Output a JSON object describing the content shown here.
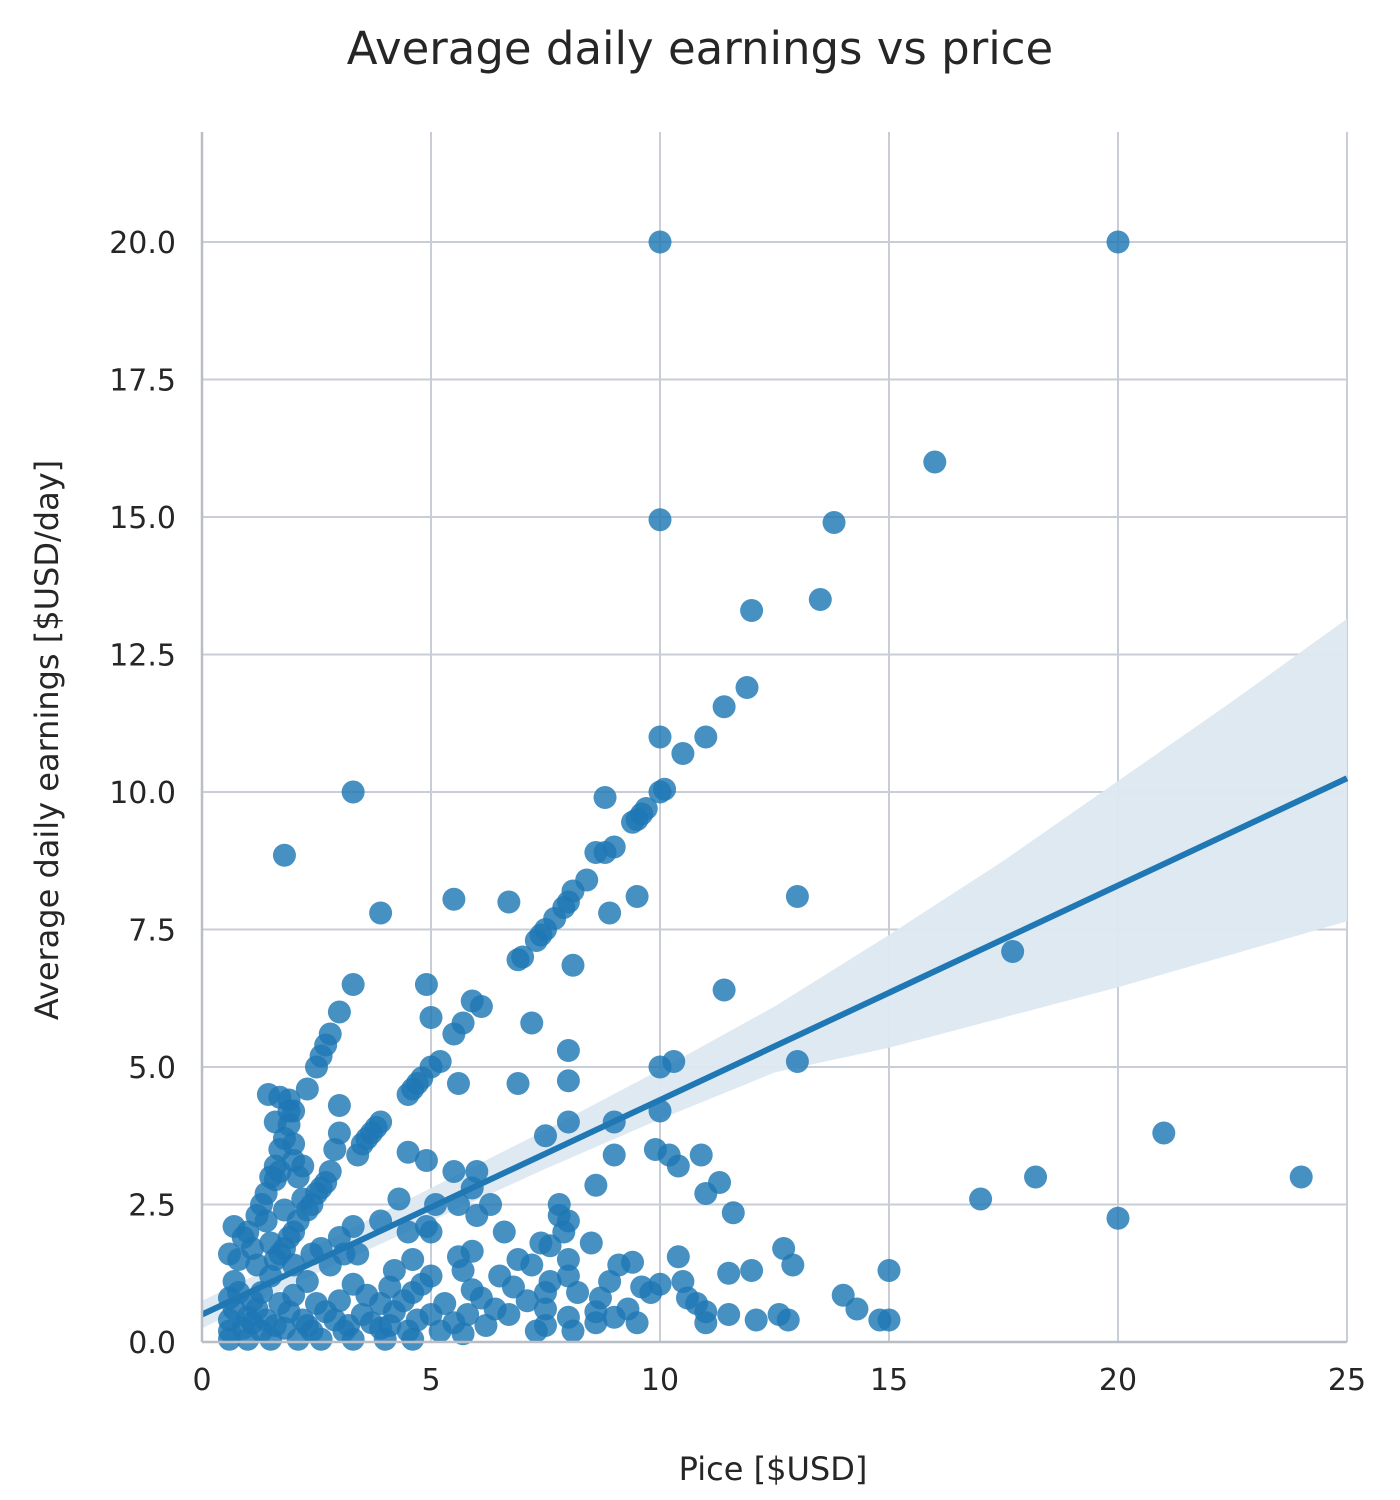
{
  "chart_data": {
    "type": "scatter",
    "title": "Average daily earnings vs price",
    "xlabel": "Pice [$USD]",
    "ylabel": "Average daily earnings [$USD/day]",
    "xlim": [
      0,
      25
    ],
    "ylim": [
      0,
      22
    ],
    "xticks": [
      "0",
      "5",
      "10",
      "15",
      "20",
      "25"
    ],
    "xtick_values": [
      0,
      5,
      10,
      15,
      20,
      25
    ],
    "yticks": [
      "0.0",
      "2.5",
      "5.0",
      "7.5",
      "10.0",
      "12.5",
      "15.0",
      "17.5",
      "20.0"
    ],
    "ytick_values": [
      0,
      2.5,
      5,
      7.5,
      10,
      12.5,
      15,
      17.5,
      20
    ],
    "grid": true,
    "color": "#1f77b4",
    "band_color": "#dde8f1",
    "grid_color": "#c9ced6",
    "regression": {
      "x": [
        0,
        25
      ],
      "y": [
        0.5,
        10.25
      ]
    },
    "ci_band": {
      "x": [
        0,
        2.5,
        5,
        7.5,
        10,
        12.5,
        15,
        17.5,
        20,
        22.5,
        25
      ],
      "upper": [
        0.75,
        1.75,
        2.8,
        3.85,
        4.95,
        6.1,
        7.4,
        8.75,
        10.2,
        11.65,
        13.15
      ],
      "lower": [
        0.25,
        1.25,
        2.2,
        3.15,
        4.05,
        4.9,
        5.35,
        5.9,
        6.45,
        7.05,
        7.65
      ]
    },
    "points": [
      [
        10,
        20
      ],
      [
        20,
        20
      ],
      [
        16,
        16
      ],
      [
        10,
        14.95
      ],
      [
        13.8,
        14.9
      ],
      [
        13.5,
        13.5
      ],
      [
        12,
        13.3
      ],
      [
        11.9,
        11.9
      ],
      [
        11.4,
        11.55
      ],
      [
        10,
        11
      ],
      [
        11,
        11
      ],
      [
        10.5,
        10.7
      ],
      [
        3.3,
        10
      ],
      [
        10.1,
        10.05
      ],
      [
        10,
        10
      ],
      [
        8.8,
        9.9
      ],
      [
        9.7,
        9.7
      ],
      [
        9.6,
        9.6
      ],
      [
        9.5,
        9.5
      ],
      [
        9.4,
        9.45
      ],
      [
        9,
        9
      ],
      [
        8.8,
        8.9
      ],
      [
        8.6,
        8.9
      ],
      [
        1.8,
        8.85
      ],
      [
        8.4,
        8.4
      ],
      [
        8.1,
        8.2
      ],
      [
        13,
        8.1
      ],
      [
        5.5,
        8.05
      ],
      [
        9.5,
        8.1
      ],
      [
        6.7,
        8
      ],
      [
        8,
        8
      ],
      [
        7.9,
        7.9
      ],
      [
        8.9,
        7.8
      ],
      [
        3.9,
        7.8
      ],
      [
        7.7,
        7.7
      ],
      [
        7.5,
        7.5
      ],
      [
        7.4,
        7.4
      ],
      [
        7.3,
        7.3
      ],
      [
        17.7,
        7.1
      ],
      [
        7,
        7
      ],
      [
        6.9,
        6.95
      ],
      [
        8.1,
        6.85
      ],
      [
        3.3,
        6.5
      ],
      [
        4.9,
        6.5
      ],
      [
        11.4,
        6.4
      ],
      [
        5.9,
        6.2
      ],
      [
        5.5,
        5.6
      ],
      [
        6.1,
        6.1
      ],
      [
        5.7,
        5.8
      ],
      [
        5,
        5.9
      ],
      [
        3,
        6
      ],
      [
        7.2,
        5.8
      ],
      [
        2.8,
        5.6
      ],
      [
        2.7,
        5.4
      ],
      [
        2.6,
        5.2
      ],
      [
        2.5,
        5
      ],
      [
        8,
        5.3
      ],
      [
        10.3,
        5.1
      ],
      [
        13,
        5.1
      ],
      [
        10,
        5
      ],
      [
        5.2,
        5.1
      ],
      [
        5,
        5
      ],
      [
        4.8,
        4.8
      ],
      [
        4.7,
        4.7
      ],
      [
        4.6,
        4.6
      ],
      [
        4.5,
        4.5
      ],
      [
        6.9,
        4.7
      ],
      [
        5.6,
        4.7
      ],
      [
        8,
        4.75
      ],
      [
        2.3,
        4.6
      ],
      [
        1.45,
        4.5
      ],
      [
        1.7,
        4.45
      ],
      [
        1.9,
        4.4
      ],
      [
        2,
        4.2
      ],
      [
        3,
        4.3
      ],
      [
        10,
        4.2
      ],
      [
        3.9,
        4
      ],
      [
        3.8,
        3.9
      ],
      [
        3.7,
        3.8
      ],
      [
        3.6,
        3.7
      ],
      [
        8,
        4
      ],
      [
        9,
        4
      ],
      [
        1.9,
        3.95
      ],
      [
        1.8,
        3.7
      ],
      [
        3,
        3.8
      ],
      [
        7.5,
        3.75
      ],
      [
        3.5,
        3.6
      ],
      [
        3.4,
        3.4
      ],
      [
        2.9,
        3.5
      ],
      [
        9.9,
        3.5
      ],
      [
        1.7,
        3.5
      ],
      [
        1.6,
        3.2
      ],
      [
        4.5,
        3.45
      ],
      [
        10.2,
        3.4
      ],
      [
        10.9,
        3.4
      ],
      [
        9,
        3.4
      ],
      [
        4.9,
        3.3
      ],
      [
        5.5,
        3.1
      ],
      [
        10.4,
        3.2
      ],
      [
        6,
        3.1
      ],
      [
        2.2,
        3.2
      ],
      [
        1.5,
        3
      ],
      [
        1.6,
        2.95
      ],
      [
        2.7,
        2.9
      ],
      [
        2.6,
        2.8
      ],
      [
        5.9,
        2.8
      ],
      [
        11.3,
        2.9
      ],
      [
        8.6,
        2.85
      ],
      [
        11,
        2.7
      ],
      [
        2.5,
        2.7
      ],
      [
        2.4,
        2.5
      ],
      [
        2.3,
        2.4
      ],
      [
        1.4,
        2.7
      ],
      [
        1.3,
        2.5
      ],
      [
        4.3,
        2.6
      ],
      [
        5.6,
        2.5
      ],
      [
        6.3,
        2.5
      ],
      [
        7.8,
        2.5
      ],
      [
        5.1,
        2.5
      ],
      [
        6,
        2.3
      ],
      [
        7.8,
        2.3
      ],
      [
        11.6,
        2.35
      ],
      [
        1.2,
        2.3
      ],
      [
        2.1,
        2.2
      ],
      [
        2,
        2
      ],
      [
        3.9,
        2.2
      ],
      [
        4.9,
        2.1
      ],
      [
        5,
        2
      ],
      [
        0.7,
        2.1
      ],
      [
        1,
        2
      ],
      [
        3.3,
        2.1
      ],
      [
        8,
        2.2
      ],
      [
        6.6,
        2
      ],
      [
        7.9,
        2
      ],
      [
        4.5,
        2
      ],
      [
        1.9,
        1.9
      ],
      [
        0.9,
        1.9
      ],
      [
        3,
        1.9
      ],
      [
        7.4,
        1.8
      ],
      [
        8.5,
        1.8
      ],
      [
        12.7,
        1.7
      ],
      [
        7.6,
        1.75
      ],
      [
        1.8,
        1.7
      ],
      [
        2.6,
        1.7
      ],
      [
        0.6,
        1.6
      ],
      [
        1.7,
        1.6
      ],
      [
        3.1,
        1.6
      ],
      [
        3.4,
        1.6
      ],
      [
        4.6,
        1.5
      ],
      [
        5.6,
        1.55
      ],
      [
        5.9,
        1.65
      ],
      [
        6.9,
        1.5
      ],
      [
        7.2,
        1.4
      ],
      [
        8,
        1.5
      ],
      [
        9.4,
        1.45
      ],
      [
        10.4,
        1.55
      ],
      [
        9.1,
        1.4
      ],
      [
        12.9,
        1.4
      ],
      [
        15,
        1.3
      ],
      [
        11.5,
        1.25
      ],
      [
        12,
        1.3
      ],
      [
        1.6,
        1.5
      ],
      [
        2.8,
        1.4
      ],
      [
        4.2,
        1.3
      ],
      [
        5,
        1.2
      ],
      [
        5.7,
        1.3
      ],
      [
        6.5,
        1.2
      ],
      [
        7.6,
        1.1
      ],
      [
        8,
        1.2
      ],
      [
        8.9,
        1.1
      ],
      [
        9.6,
        1
      ],
      [
        10,
        1.05
      ],
      [
        10.5,
        1.1
      ],
      [
        0.7,
        1.1
      ],
      [
        1.5,
        1.2
      ],
      [
        2.3,
        1.1
      ],
      [
        3.3,
        1.05
      ],
      [
        4.1,
        1
      ],
      [
        4.8,
        1.05
      ],
      [
        5.9,
        0.95
      ],
      [
        6.8,
        1
      ],
      [
        7.5,
        0.9
      ],
      [
        8.2,
        0.9
      ],
      [
        9.8,
        0.9
      ],
      [
        10.6,
        0.8
      ],
      [
        14,
        0.85
      ],
      [
        0.8,
        0.9
      ],
      [
        1.3,
        0.9
      ],
      [
        2,
        0.85
      ],
      [
        3.6,
        0.85
      ],
      [
        4.6,
        0.9
      ],
      [
        6.1,
        0.8
      ],
      [
        7.1,
        0.75
      ],
      [
        8.7,
        0.8
      ],
      [
        10.8,
        0.7
      ],
      [
        14.3,
        0.6
      ],
      [
        0.6,
        0.8
      ],
      [
        1.1,
        0.75
      ],
      [
        1.7,
        0.7
      ],
      [
        2.5,
        0.7
      ],
      [
        3,
        0.75
      ],
      [
        3.9,
        0.7
      ],
      [
        4.4,
        0.75
      ],
      [
        5.3,
        0.7
      ],
      [
        6.4,
        0.6
      ],
      [
        7.5,
        0.6
      ],
      [
        8.6,
        0.55
      ],
      [
        9.3,
        0.6
      ],
      [
        11,
        0.55
      ],
      [
        11.5,
        0.5
      ],
      [
        12.6,
        0.5
      ],
      [
        0.7,
        0.6
      ],
      [
        1.2,
        0.6
      ],
      [
        1.9,
        0.55
      ],
      [
        2.7,
        0.55
      ],
      [
        3.5,
        0.5
      ],
      [
        4.2,
        0.55
      ],
      [
        5,
        0.5
      ],
      [
        5.8,
        0.5
      ],
      [
        6.7,
        0.5
      ],
      [
        8,
        0.45
      ],
      [
        9,
        0.45
      ],
      [
        12.1,
        0.4
      ],
      [
        12.8,
        0.4
      ],
      [
        14.8,
        0.4
      ],
      [
        15,
        0.4
      ],
      [
        0.6,
        0.4
      ],
      [
        1,
        0.45
      ],
      [
        1.4,
        0.4
      ],
      [
        2.2,
        0.4
      ],
      [
        2.9,
        0.4
      ],
      [
        3.7,
        0.35
      ],
      [
        4.7,
        0.4
      ],
      [
        5.5,
        0.35
      ],
      [
        6.2,
        0.3
      ],
      [
        7.5,
        0.3
      ],
      [
        8.6,
        0.35
      ],
      [
        9.5,
        0.35
      ],
      [
        11,
        0.35
      ],
      [
        0.6,
        0.2
      ],
      [
        0.9,
        0.25
      ],
      [
        1.3,
        0.2
      ],
      [
        1.8,
        0.25
      ],
      [
        2.4,
        0.2
      ],
      [
        3.1,
        0.2
      ],
      [
        3.9,
        0.25
      ],
      [
        4.5,
        0.2
      ],
      [
        5.2,
        0.2
      ],
      [
        5.7,
        0.15
      ],
      [
        7.3,
        0.2
      ],
      [
        8.1,
        0.2
      ],
      [
        0.6,
        0.05
      ],
      [
        1,
        0.05
      ],
      [
        1.5,
        0.05
      ],
      [
        2.1,
        0.05
      ],
      [
        2.6,
        0.05
      ],
      [
        3.3,
        0.05
      ],
      [
        4,
        0.05
      ],
      [
        4.6,
        0.05
      ],
      [
        1.1,
        0.35
      ],
      [
        1.6,
        0.3
      ],
      [
        2.3,
        0.3
      ],
      [
        3.2,
        0.3
      ],
      [
        4.1,
        0.3
      ],
      [
        1.2,
        1.4
      ],
      [
        1.5,
        1.8
      ],
      [
        2,
        1.4
      ],
      [
        2.4,
        1.6
      ],
      [
        0.8,
        1.5
      ],
      [
        1.1,
        1.7
      ],
      [
        1.4,
        2.2
      ],
      [
        1.8,
        2.4
      ],
      [
        2.2,
        2.6
      ],
      [
        1.7,
        3.1
      ],
      [
        2,
        3.3
      ],
      [
        2.1,
        3
      ],
      [
        2.8,
        3.1
      ],
      [
        1.6,
        4
      ],
      [
        2,
        3.6
      ],
      [
        1.9,
        4.2
      ],
      [
        17,
        2.6
      ],
      [
        18.2,
        3
      ],
      [
        20,
        2.25
      ],
      [
        21,
        3.8
      ],
      [
        24,
        3
      ]
    ]
  }
}
